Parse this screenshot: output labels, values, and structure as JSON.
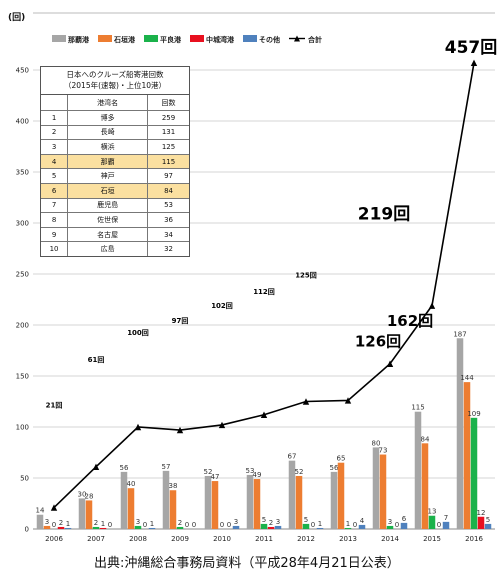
{
  "chart_data": {
    "type": "bar",
    "y_unit": "(回)",
    "ylim": [
      0,
      450
    ],
    "yticks": [
      0,
      50,
      100,
      150,
      200,
      250,
      300,
      350,
      400,
      450
    ],
    "categories": [
      "2006",
      "2007",
      "2008",
      "2009",
      "2010",
      "2011",
      "2012",
      "2013",
      "2014",
      "2015",
      "2016"
    ],
    "series": [
      {
        "name": "那覇港",
        "color": "#a6a6a6",
        "values": [
          14,
          30,
          56,
          57,
          52,
          53,
          67,
          56,
          80,
          115,
          187
        ]
      },
      {
        "name": "石垣港",
        "color": "#ed7d31",
        "values": [
          3,
          28,
          40,
          38,
          47,
          49,
          52,
          65,
          73,
          84,
          144
        ]
      },
      {
        "name": "平良港",
        "color": "#1bb24b",
        "values": [
          0,
          2,
          3,
          2,
          0,
          5,
          5,
          1,
          3,
          13,
          109
        ]
      },
      {
        "name": "中城湾港",
        "color": "#e8101f",
        "values": [
          2,
          1,
          0,
          0,
          0,
          2,
          0,
          0,
          0,
          0,
          12
        ]
      },
      {
        "name": "その他",
        "color": "#4f81bd",
        "values": [
          1,
          0,
          1,
          0,
          3,
          3,
          1,
          4,
          6,
          7,
          5
        ]
      }
    ],
    "total": {
      "name": "合計",
      "color": "#000000",
      "values": [
        21,
        61,
        100,
        97,
        102,
        112,
        125,
        126,
        162,
        219,
        457
      ],
      "labels": [
        "21回",
        "61回",
        "100回",
        "97回",
        "102回",
        "112回",
        "125回",
        "126回",
        "162回",
        "219回",
        "457回"
      ]
    },
    "grid": true,
    "legend_position": "top"
  },
  "inset_table": {
    "title_line1": "日本へのクルーズ船寄港回数",
    "title_line2": "（2015年(速報)・上位10港）",
    "headers": [
      "",
      "港湾名",
      "回数"
    ],
    "rows": [
      {
        "rank": "1",
        "port": "博多",
        "count": "259",
        "highlight": false
      },
      {
        "rank": "2",
        "port": "長崎",
        "count": "131",
        "highlight": false
      },
      {
        "rank": "3",
        "port": "横浜",
        "count": "125",
        "highlight": false
      },
      {
        "rank": "4",
        "port": "那覇",
        "count": "115",
        "highlight": true
      },
      {
        "rank": "5",
        "port": "神戸",
        "count": "97",
        "highlight": false
      },
      {
        "rank": "6",
        "port": "石垣",
        "count": "84",
        "highlight": true
      },
      {
        "rank": "7",
        "port": "鹿児島",
        "count": "53",
        "highlight": false
      },
      {
        "rank": "8",
        "port": "佐世保",
        "count": "36",
        "highlight": false
      },
      {
        "rank": "9",
        "port": "名古屋",
        "count": "34",
        "highlight": false
      },
      {
        "rank": "10",
        "port": "広島",
        "count": "32",
        "highlight": false
      }
    ]
  },
  "source_note": "出典:沖縄総合事務局資料（平成28年4月21日公表）"
}
